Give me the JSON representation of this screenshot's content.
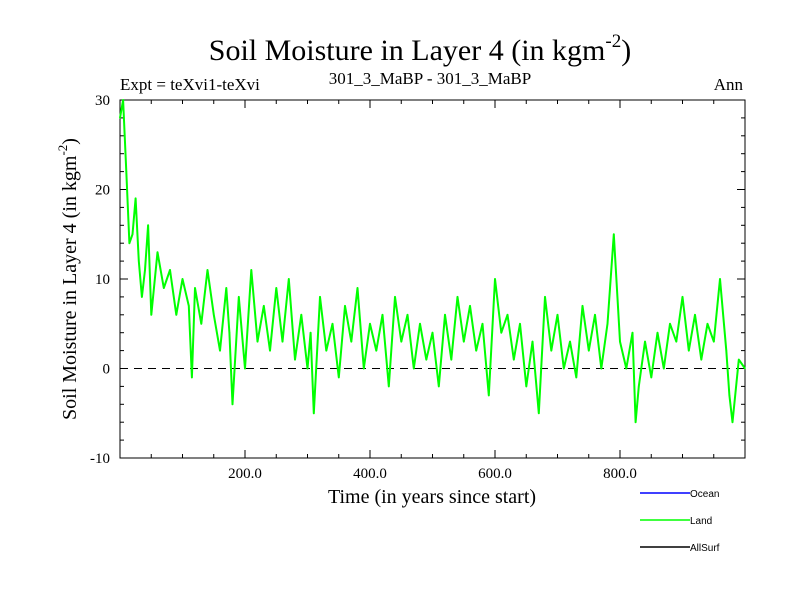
{
  "chart_data": {
    "type": "line",
    "title": "Soil Moisture in Layer 4 (in kgm",
    "title_sup": "-2",
    "title_close": ")",
    "subtitle_left": "Expt = teXvi1-teXvi",
    "subtitle_center": "301_3_MaBP - 301_3_MaBP",
    "subtitle_right": "Ann",
    "xlabel": "Time (in years since start)",
    "ylabel": "Soil Moisture in Layer 4 (in kgm",
    "ylabel_sup": "-2",
    "ylabel_close": ")",
    "xlim": [
      0,
      1000
    ],
    "ylim": [
      -10,
      30
    ],
    "x_ticks": [
      200,
      400,
      600,
      800
    ],
    "x_tick_labels": [
      "200.0",
      "400.0",
      "600.0",
      "800.0"
    ],
    "y_ticks": [
      -10,
      0,
      10,
      20,
      30
    ],
    "y_tick_labels": [
      "-10",
      "0",
      "10",
      "20",
      "30"
    ],
    "reference_line": 0,
    "legend": [
      {
        "name": "Ocean",
        "color": "#0000ff"
      },
      {
        "name": "Land",
        "color": "#00ff00"
      },
      {
        "name": "AllSurf",
        "color": "#000000"
      }
    ],
    "series": [
      {
        "name": "Land",
        "color": "#00ff00",
        "x": [
          0,
          5,
          10,
          15,
          20,
          25,
          30,
          35,
          40,
          45,
          50,
          60,
          70,
          80,
          90,
          100,
          110,
          115,
          120,
          130,
          140,
          150,
          160,
          170,
          175,
          180,
          190,
          200,
          210,
          220,
          230,
          240,
          250,
          260,
          270,
          280,
          290,
          300,
          305,
          310,
          320,
          330,
          340,
          350,
          360,
          370,
          380,
          390,
          400,
          410,
          420,
          430,
          440,
          450,
          460,
          470,
          480,
          490,
          500,
          510,
          520,
          530,
          540,
          550,
          560,
          570,
          580,
          590,
          600,
          610,
          620,
          630,
          640,
          650,
          660,
          670,
          680,
          690,
          700,
          710,
          720,
          730,
          740,
          750,
          760,
          770,
          780,
          790,
          800,
          810,
          820,
          825,
          830,
          840,
          850,
          860,
          870,
          880,
          890,
          900,
          910,
          920,
          930,
          940,
          950,
          960,
          970,
          975,
          980,
          990,
          1000
        ],
        "values": [
          28,
          30,
          22,
          14,
          15,
          19,
          12,
          8,
          11,
          16,
          6,
          13,
          9,
          11,
          6,
          10,
          7,
          -1,
          9,
          5,
          11,
          6,
          2,
          9,
          4,
          -4,
          8,
          0,
          11,
          3,
          7,
          2,
          9,
          3,
          10,
          1,
          6,
          0,
          4,
          -5,
          8,
          2,
          5,
          -1,
          7,
          3,
          9,
          0,
          5,
          2,
          6,
          -2,
          8,
          3,
          6,
          0,
          5,
          1,
          4,
          -2,
          6,
          1,
          8,
          3,
          7,
          2,
          5,
          -3,
          10,
          4,
          6,
          1,
          5,
          -2,
          3,
          -5,
          8,
          2,
          6,
          0,
          3,
          -1,
          7,
          2,
          6,
          0,
          5,
          15,
          3,
          0,
          4,
          -6,
          -2,
          3,
          -1,
          4,
          0,
          5,
          3,
          8,
          2,
          6,
          1,
          5,
          3,
          10,
          2,
          -3,
          -6,
          1,
          0
        ]
      }
    ]
  }
}
